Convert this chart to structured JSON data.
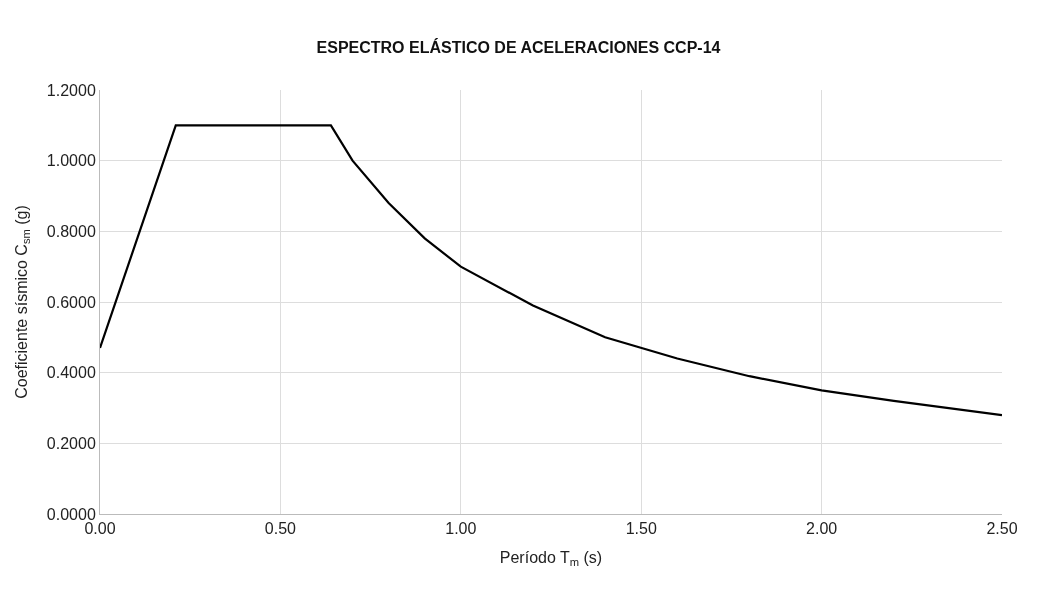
{
  "chart_data": {
    "type": "line",
    "title": "ESPECTRO ELÁSTICO DE ACELERACIONES CCP-14",
    "xlabel": "Período T$_{m}$ (s)",
    "ylabel": "Coeficiente sísmico C$_{sm}$ (g)",
    "x": [
      0,
      0.21,
      0.64,
      0.7,
      0.8,
      0.9,
      1.0,
      1.2,
      1.4,
      1.6,
      1.8,
      2.0,
      2.2,
      2.5
    ],
    "series": [
      {
        "color": "#000000",
        "values": [
          0.47,
          1.1,
          1.1,
          1.0,
          0.88,
          0.78,
          0.7,
          0.59,
          0.5,
          0.44,
          0.39,
          0.35,
          0.32,
          0.28
        ]
      }
    ],
    "xlim": [
      0,
      2.5
    ],
    "ylim": [
      0,
      1.2
    ],
    "xticks": [
      {
        "value": 0,
        "label": "0.00"
      },
      {
        "value": 0.5,
        "label": "0.50"
      },
      {
        "value": 1,
        "label": "1.00"
      },
      {
        "value": 1.5,
        "label": "1.50"
      },
      {
        "value": 2,
        "label": "2.00"
      },
      {
        "value": 2.5,
        "label": "2.50"
      }
    ],
    "yticks": [
      {
        "value": 0,
        "label": "0.0000"
      },
      {
        "value": 0.2,
        "label": "0.2000"
      },
      {
        "value": 0.4,
        "label": "0.4000"
      },
      {
        "value": 0.6,
        "label": "0.6000"
      },
      {
        "value": 0.8,
        "label": "0.8000"
      },
      {
        "value": 1,
        "label": "1.0000"
      },
      {
        "value": 1.2,
        "label": "1.2000"
      }
    ],
    "grid": true,
    "marker": "none",
    "line_style": "solid"
  }
}
